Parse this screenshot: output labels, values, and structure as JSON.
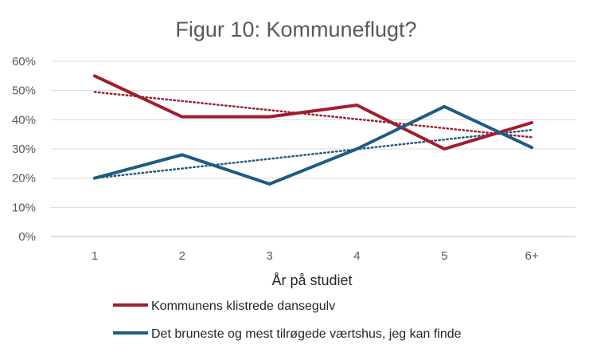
{
  "chart_data": {
    "type": "line",
    "title": "Figur 10: Kommuneflugt?",
    "xlabel": "År på studiet",
    "ylabel": "",
    "categories": [
      "1",
      "2",
      "3",
      "4",
      "5",
      "6+"
    ],
    "ylim": [
      0,
      0.6
    ],
    "yticks": [
      "0%",
      "10%",
      "20%",
      "30%",
      "40%",
      "50%",
      "60%"
    ],
    "grid": true,
    "legend_placement": "bottom",
    "series": [
      {
        "name": "Kommunens klistrede dansegulv",
        "color": "#A11D2E",
        "values": [
          0.55,
          0.41,
          0.41,
          0.45,
          0.3,
          0.39
        ],
        "trendline": {
          "type": "linear",
          "start": 0.495,
          "end": 0.34,
          "style": "dotted"
        }
      },
      {
        "name": "Det bruneste og mest tilrøgede værtshus, jeg kan finde",
        "color": "#1F5B82",
        "values": [
          0.2,
          0.28,
          0.18,
          0.3,
          0.445,
          0.305
        ],
        "trendline": {
          "type": "linear",
          "start": 0.2,
          "end": 0.365,
          "style": "dotted"
        }
      }
    ]
  }
}
